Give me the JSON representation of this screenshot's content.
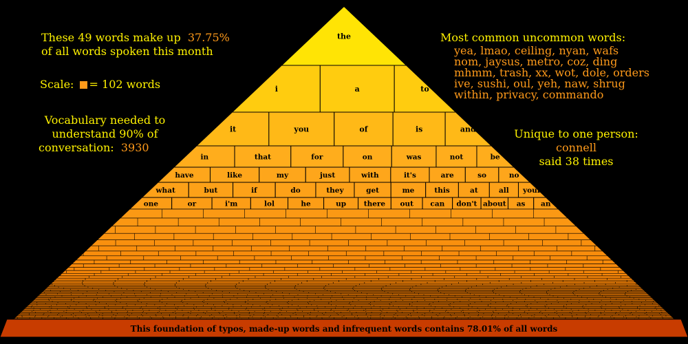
{
  "left_panel": {
    "share_line1": "These 49 words make up",
    "share_value": "37.75%",
    "share_line2": "of all words spoken this month",
    "scale_label": "Scale:",
    "scale_value": "= 102 words",
    "vocab_line1": "Vocabulary needed to",
    "vocab_line2": "understand 90% of",
    "vocab_line3": "conversation:",
    "vocab_value": "3930"
  },
  "right_panel": {
    "uncommon_title": "Most common uncommon words:",
    "uncommon_words": [
      "yea, lmao, ceiling, nyan, wafs",
      "nom, jaysus, metro, coz, ding",
      "mhmm, trash, xx, wot, dole, orders",
      "ive, sushi, oul, yeh, naw, shrug",
      "within, privacy, commando"
    ],
    "unique_title": "Unique to one person:",
    "unique_word": "connell",
    "unique_count": "said 38 times"
  },
  "chart_data": {
    "type": "pyramid",
    "title": "",
    "top_words_count": 49,
    "top_words_share_percent": 37.75,
    "scale_block_words": 102,
    "vocabulary_for_90_percent": 3930,
    "foundation_share_percent": 78.01,
    "rows": [
      [
        "the"
      ],
      [
        "i",
        "a",
        "to"
      ],
      [
        "it",
        "you",
        "of",
        "is",
        "and"
      ],
      [
        "in",
        "that",
        "for",
        "on",
        "was",
        "not",
        "be"
      ],
      [
        "have",
        "like",
        "my",
        "just",
        "with",
        "it's",
        "are",
        "so",
        "no"
      ],
      [
        "what",
        "but",
        "if",
        "do",
        "they",
        "get",
        "me",
        "this",
        "at",
        "all",
        "your"
      ],
      [
        "one",
        "or",
        "i'm",
        "lol",
        "he",
        "up",
        "there",
        "out",
        "can",
        "don't",
        "about",
        "as",
        "an"
      ]
    ],
    "foundation_label": "This foundation of typos, made-up words and infrequent words contains 78.01% of all words"
  }
}
